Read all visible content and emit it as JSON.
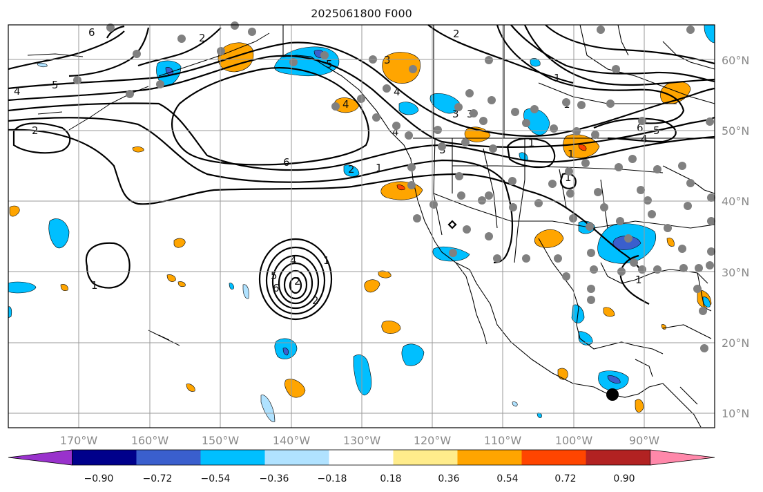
{
  "title": "2025061800 F000",
  "map": {
    "lat_labels": [
      "60°N",
      "50°N",
      "40°N",
      "30°N",
      "20°N",
      "10°N"
    ],
    "lon_labels": [
      "170°W",
      "160°W",
      "150°W",
      "140°W",
      "130°W",
      "120°W",
      "110°W",
      "100°W",
      "90°W"
    ],
    "contour_labels": [
      "6",
      "2",
      "4",
      "5",
      "2",
      "2",
      "6",
      "5",
      "4",
      "3",
      "4",
      "2",
      "3",
      "1",
      "4",
      "5",
      "2",
      "1",
      "6",
      "2",
      "1",
      "3",
      "4",
      "3",
      "1",
      "1",
      "1",
      "1",
      "6",
      "5",
      "4",
      "1",
      "1"
    ],
    "grid_color": "#9a9a9a",
    "markers": {
      "gray_station_color": "#808080",
      "highlight_color": "#000000"
    }
  },
  "colorbar": {
    "ticks": [
      "−0.90",
      "−0.72",
      "−0.54",
      "−0.36",
      "−0.18",
      "0.18",
      "0.36",
      "0.54",
      "0.72",
      "0.90"
    ],
    "colors": [
      "#9932cc",
      "#00008b",
      "#3a5fcd",
      "#00bfff",
      "#b0e2ff",
      "#ffffff",
      "#ffec8b",
      "#ffa500",
      "#ff4500",
      "#b22222",
      "#ff88aa"
    ]
  }
}
